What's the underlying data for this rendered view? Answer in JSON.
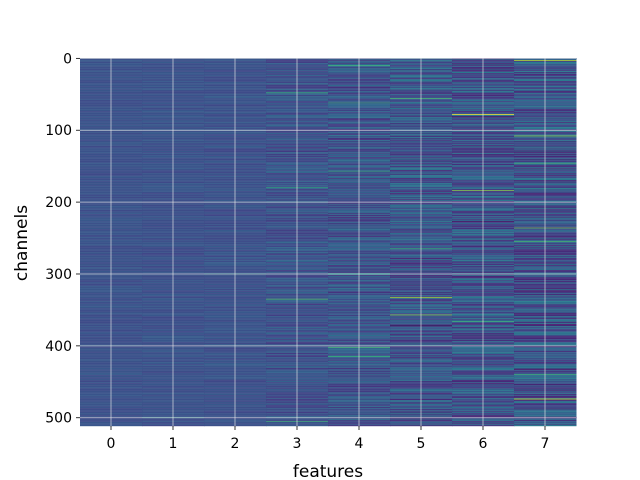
{
  "chart_data": {
    "type": "heatmap",
    "title": "",
    "xlabel": "features",
    "ylabel": "channels",
    "x_categories": [
      0,
      1,
      2,
      3,
      4,
      5,
      6,
      7
    ],
    "x_ticks": [
      "0",
      "1",
      "2",
      "3",
      "4",
      "5",
      "6",
      "7"
    ],
    "y_ticks": [
      "0",
      "100",
      "200",
      "300",
      "400",
      "500"
    ],
    "y_tick_values": [
      0,
      100,
      200,
      300,
      400,
      500
    ],
    "y_range": [
      0,
      511
    ],
    "y_inverted": true,
    "num_channels": 512,
    "grid": true,
    "colormap": "viridis",
    "column_intensity": [
      0.06,
      0.07,
      0.08,
      0.16,
      0.22,
      0.28,
      0.3,
      0.32
    ],
    "highlights": [
      {
        "feature": 3,
        "channel": 48,
        "value": 0.55
      },
      {
        "feature": 3,
        "channel": 180,
        "value": 0.5
      },
      {
        "feature": 3,
        "channel": 335,
        "value": 0.62
      },
      {
        "feature": 4,
        "channel": 10,
        "value": 0.55
      },
      {
        "feature": 4,
        "channel": 62,
        "value": 0.5
      },
      {
        "feature": 4,
        "channel": 157,
        "value": 0.5
      },
      {
        "feature": 4,
        "channel": 300,
        "value": 0.5
      },
      {
        "feature": 4,
        "channel": 402,
        "value": 0.6
      },
      {
        "feature": 4,
        "channel": 415,
        "value": 0.55
      },
      {
        "feature": 5,
        "channel": 56,
        "value": 0.6
      },
      {
        "feature": 5,
        "channel": 333,
        "value": 0.85
      },
      {
        "feature": 5,
        "channel": 357,
        "value": 0.75
      },
      {
        "feature": 5,
        "channel": 372,
        "value": -0.35
      },
      {
        "feature": 5,
        "channel": 265,
        "value": 0.55
      },
      {
        "feature": 6,
        "channel": 78,
        "value": 1.0
      },
      {
        "feature": 6,
        "channel": 81,
        "value": -0.3
      },
      {
        "feature": 6,
        "channel": 184,
        "value": 0.75
      },
      {
        "feature": 6,
        "channel": 227,
        "value": -0.3
      },
      {
        "feature": 6,
        "channel": 366,
        "value": 0.55
      },
      {
        "feature": 7,
        "channel": 3,
        "value": 0.85
      },
      {
        "feature": 7,
        "channel": 108,
        "value": 0.75
      },
      {
        "feature": 7,
        "channel": 146,
        "value": 0.55
      },
      {
        "feature": 7,
        "channel": 236,
        "value": 0.7
      },
      {
        "feature": 7,
        "channel": 255,
        "value": 0.6
      },
      {
        "feature": 7,
        "channel": 440,
        "value": 0.55
      },
      {
        "feature": 7,
        "channel": 474,
        "value": 0.9
      },
      {
        "feature": 3,
        "channel": 505,
        "value": 0.55
      },
      {
        "feature": 2,
        "channel": 300,
        "value": 0.45
      },
      {
        "feature": 1,
        "channel": 500,
        "value": 0.4
      }
    ]
  },
  "colors": {
    "base": "#3b528b",
    "grid": "#e8e8e8",
    "text": "#000000"
  }
}
